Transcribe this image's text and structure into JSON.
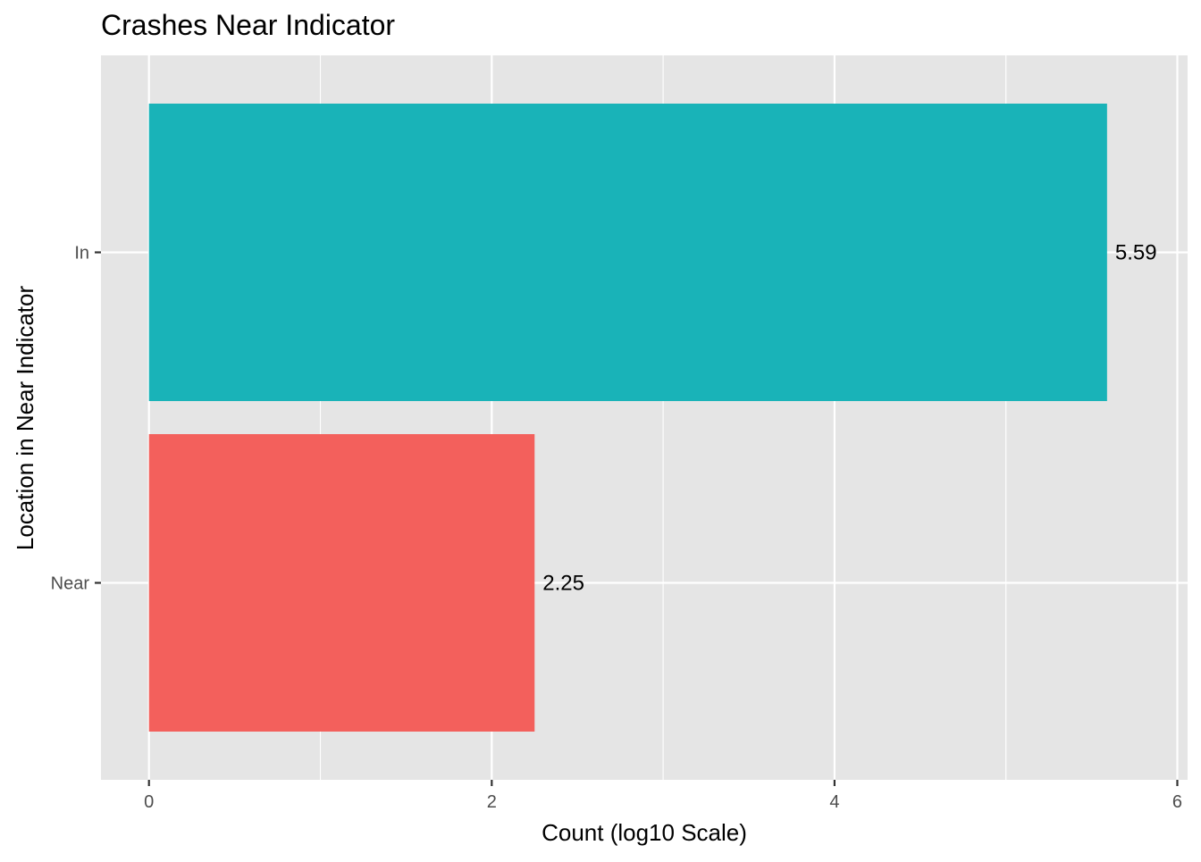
{
  "chart_data": {
    "type": "bar",
    "orientation": "horizontal",
    "title": "Crashes Near Indicator",
    "xlabel": "Count (log10 Scale)",
    "ylabel": "Location in Near Indicator",
    "categories": [
      "In",
      "Near"
    ],
    "values": [
      5.59,
      2.25
    ],
    "data_labels": [
      "5.59",
      "2.25"
    ],
    "colors": [
      "#19B3B8",
      "#F3605C"
    ],
    "xlim": [
      -0.28,
      6.06
    ],
    "x_ticks": [
      0,
      2,
      4,
      6
    ],
    "x_tick_labels": [
      "0",
      "2",
      "4",
      "6"
    ],
    "x_minor_ticks": [
      1,
      3,
      5
    ],
    "grid": true,
    "legend": "none",
    "panel_background": "#E5E5E5",
    "grid_color": "#FFFFFF"
  }
}
